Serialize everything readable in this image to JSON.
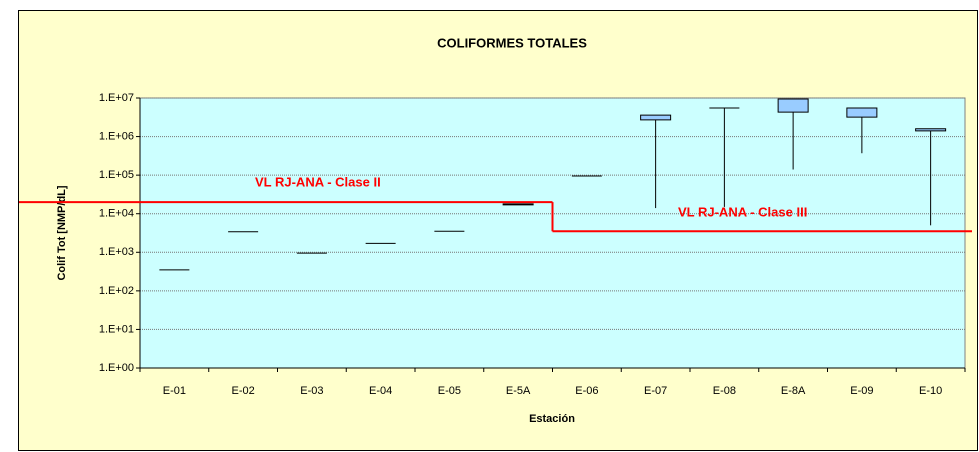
{
  "chart_data": {
    "type": "box",
    "title": "COLIFORMES TOTALES",
    "x_label": "Estación",
    "y_label": "Colif Tot [NMP/dL]",
    "categories": [
      "E-01",
      "E-02",
      "E-03",
      "E-04",
      "E-05",
      "E-5A",
      "E-06",
      "E-07",
      "E-08",
      "E-8A",
      "E-09",
      "E-10"
    ],
    "low": [
      350,
      3400,
      950,
      1700,
      3500,
      17000,
      95000,
      14000,
      15000,
      140000,
      370000,
      5000
    ],
    "q1": [
      350,
      3400,
      950,
      1700,
      3500,
      17000,
      95000,
      2700000,
      5500000,
      4300000,
      3200000,
      1400000
    ],
    "q3": [
      350,
      3400,
      950,
      1700,
      3500,
      18000,
      95000,
      3600000,
      5500000,
      9400000,
      5500000,
      1600000
    ],
    "high": [
      350,
      3400,
      950,
      1700,
      3500,
      18000,
      95000,
      3600000,
      5500000,
      9400000,
      5500000,
      1600000
    ],
    "color": "#99ccff",
    "log_scale": true,
    "ylim": [
      1,
      10000000
    ],
    "yticks": [
      {
        "value": 1,
        "label": "1.E+00"
      },
      {
        "value": 10,
        "label": "1.E+01"
      },
      {
        "value": 100,
        "label": "1.E+02"
      },
      {
        "value": 1000,
        "label": "1.E+03"
      },
      {
        "value": 10000,
        "label": "1.E+04"
      },
      {
        "value": 100000,
        "label": "1.E+05"
      },
      {
        "value": 1000000,
        "label": "1.E+06"
      },
      {
        "value": 10000000,
        "label": "1.E+07"
      }
    ],
    "grid": true,
    "reference_lines": [
      {
        "label": "VL RJ-ANA - Clase II",
        "value": 20000,
        "color": "#ff0000"
      },
      {
        "label": "VL RJ-ANA - Clase III",
        "value": 3500,
        "color": "#ff0000"
      }
    ]
  }
}
